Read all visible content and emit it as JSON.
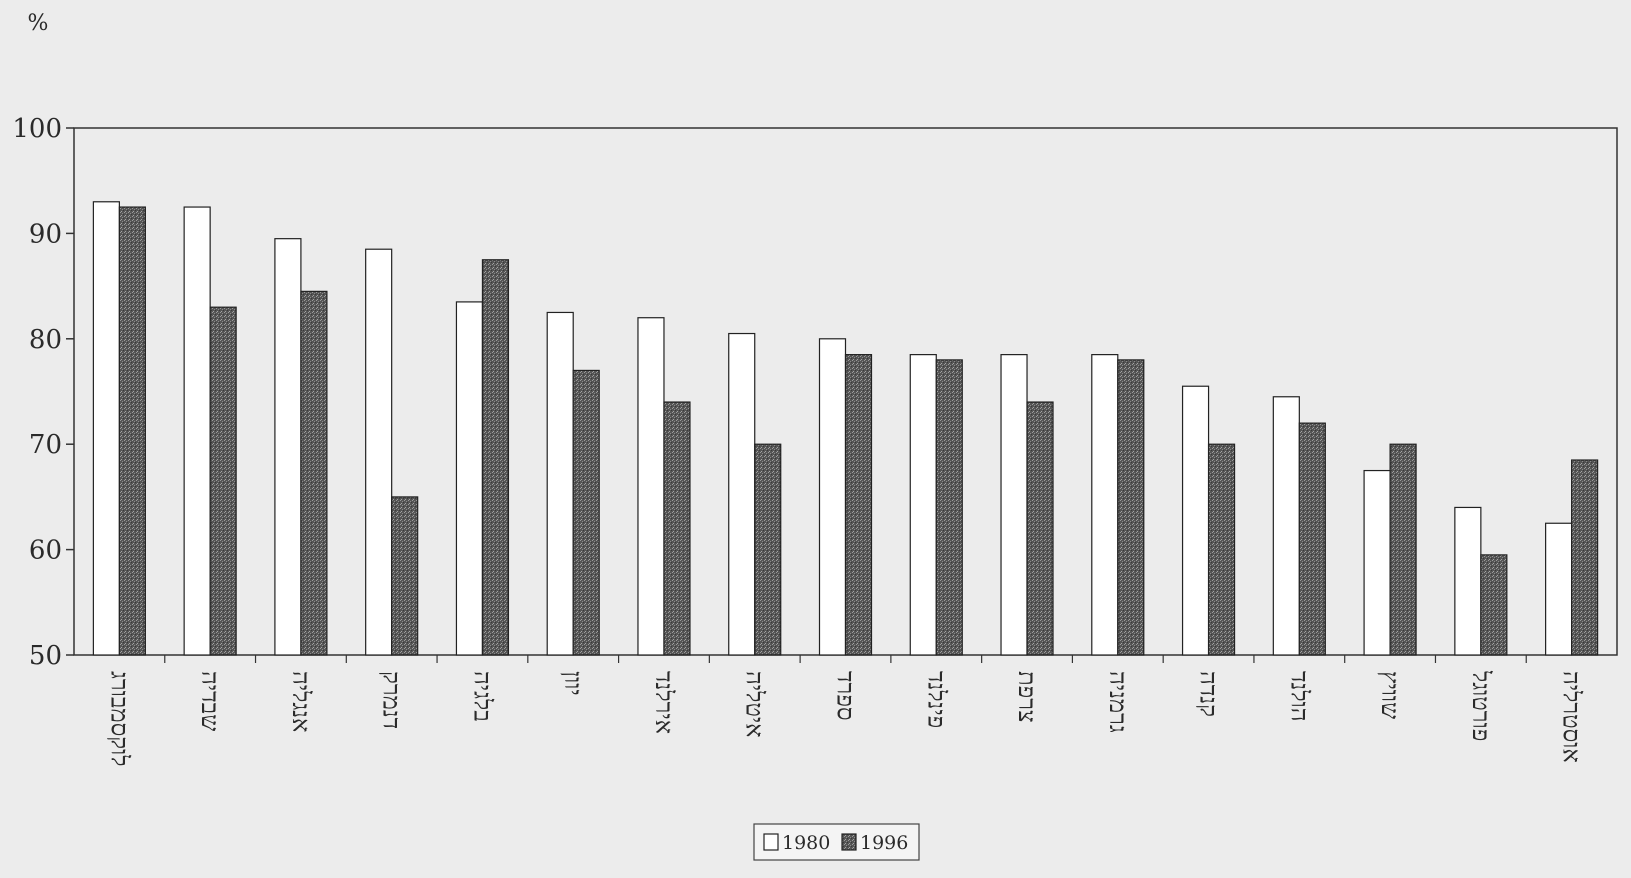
{
  "chart_data": {
    "type": "bar",
    "unit_label": "%",
    "categories": [
      "לוקסמבורג",
      "שבדיה",
      "אנגליה",
      "דנמרק",
      "בלגיה",
      "יוון",
      "אירלנד",
      "איטליה",
      "ספרד",
      "פינלנד",
      "צרפת",
      "גרמניה",
      "קנדה",
      "הולנד",
      "שוויץ",
      "פורטוגל",
      "אוסטרליה"
    ],
    "series": [
      {
        "name": "1980",
        "values": [
          93,
          92.5,
          89.5,
          88.5,
          83.5,
          82.5,
          82,
          80.5,
          80,
          78.5,
          78.5,
          78.5,
          75.5,
          74.5,
          67.5,
          64,
          62.5
        ]
      },
      {
        "name": "1996",
        "values": [
          92.5,
          83,
          84.5,
          65,
          87.5,
          77,
          74,
          70,
          78.5,
          78,
          74,
          78,
          70,
          72,
          70,
          59.5,
          68.5
        ]
      }
    ],
    "ylim": [
      50,
      100
    ],
    "yticks": [
      50,
      60,
      70,
      80,
      90,
      100
    ],
    "series_styles": [
      {
        "fill": "#ffffff",
        "stroke": "#222222"
      },
      {
        "fill": "#5a5a5a",
        "stroke": "#222222"
      }
    ],
    "grid": false,
    "legend_position": "bottom-center"
  }
}
